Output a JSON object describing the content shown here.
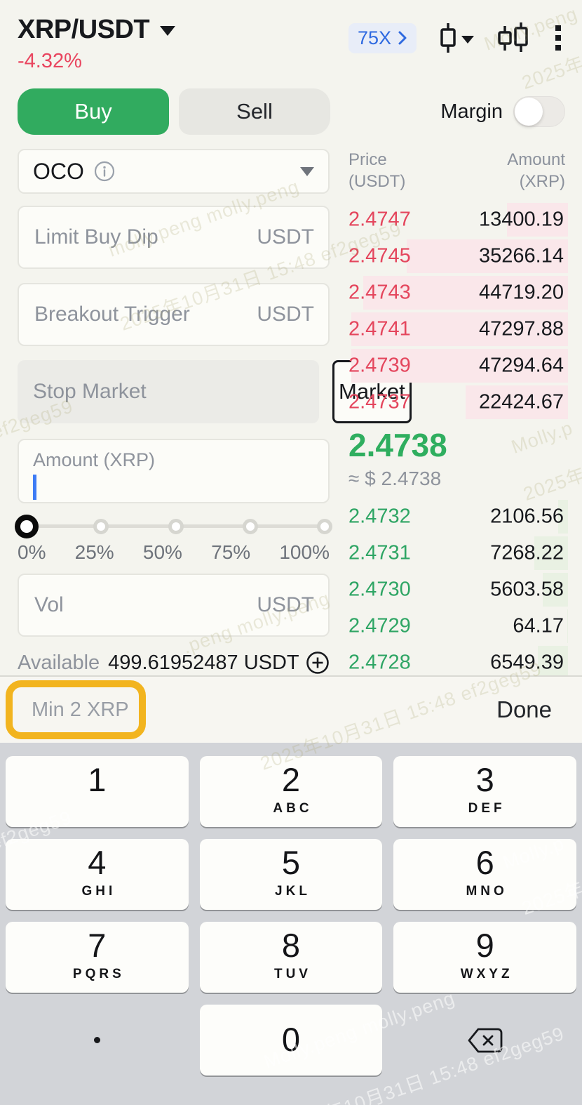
{
  "header": {
    "pair": "XRP/USDT",
    "change": "-4.32%",
    "leverage": "75X"
  },
  "tabs": {
    "buy": "Buy",
    "sell": "Sell",
    "margin": "Margin"
  },
  "form": {
    "order_type": "OCO",
    "limit_buy_dip": {
      "placeholder": "Limit Buy Dip",
      "unit": "USDT"
    },
    "breakout_trigger": {
      "placeholder": "Breakout Trigger",
      "unit": "USDT"
    },
    "stop_market": {
      "placeholder": "Stop Market"
    },
    "market_button": "Market",
    "amount": {
      "placeholder": "Amount (XRP)"
    },
    "slider_labels": [
      "0%",
      "25%",
      "50%",
      "75%",
      "100%"
    ],
    "vol": {
      "placeholder": "Vol",
      "unit": "USDT"
    },
    "available": {
      "label": "Available",
      "value": "499.61952487 USDT"
    }
  },
  "orderbook": {
    "headers": {
      "price": "Price",
      "price_unit": "(USDT)",
      "amount": "Amount",
      "amount_unit": "(XRP)"
    },
    "asks": [
      {
        "price": "2.4747",
        "amount": "13400.19"
      },
      {
        "price": "2.4745",
        "amount": "35266.14"
      },
      {
        "price": "2.4743",
        "amount": "44719.20"
      },
      {
        "price": "2.4741",
        "amount": "47297.88"
      },
      {
        "price": "2.4739",
        "amount": "47294.64"
      },
      {
        "price": "2.4737",
        "amount": "22424.67"
      }
    ],
    "last_price": "2.4738",
    "last_price_approx": "≈ $ 2.4738",
    "bids": [
      {
        "price": "2.4732",
        "amount": "2106.56"
      },
      {
        "price": "2.4731",
        "amount": "7268.22"
      },
      {
        "price": "2.4730",
        "amount": "5603.58"
      },
      {
        "price": "2.4729",
        "amount": "64.17"
      },
      {
        "price": "2.4728",
        "amount": "6549.39"
      }
    ],
    "depth_max_amount": 47297.88,
    "colors": {
      "ask": "#e4465d",
      "bid": "#2ea564",
      "last": "#2fae5f",
      "ask_depth": "#fae7ea",
      "bid_depth": "#e9f1e3"
    }
  },
  "accessory": {
    "hint": "Min 2 XRP",
    "done": "Done",
    "highlight_color": "#f2b41f"
  },
  "keypad": {
    "keys": [
      {
        "digit": "1",
        "letters": ""
      },
      {
        "digit": "2",
        "letters": "ABC"
      },
      {
        "digit": "3",
        "letters": "DEF"
      },
      {
        "digit": "4",
        "letters": "GHI"
      },
      {
        "digit": "5",
        "letters": "JKL"
      },
      {
        "digit": "6",
        "letters": "MNO"
      },
      {
        "digit": "7",
        "letters": "PQRS"
      },
      {
        "digit": "8",
        "letters": "TUV"
      },
      {
        "digit": "9",
        "letters": "WXYZ"
      }
    ],
    "zero": {
      "digit": "0",
      "letters": ""
    },
    "decimal": ".",
    "backspace": "backspace-icon"
  },
  "watermarks": [
    "molly.peng molly.peng",
    "2025年10月31日 15:48 ef2geg59",
    "Molly.peng",
    "2025年",
    "Molly.p",
    "ef2geg59",
    ".peng molly.peng",
    "Molly.peng molly.peng"
  ]
}
